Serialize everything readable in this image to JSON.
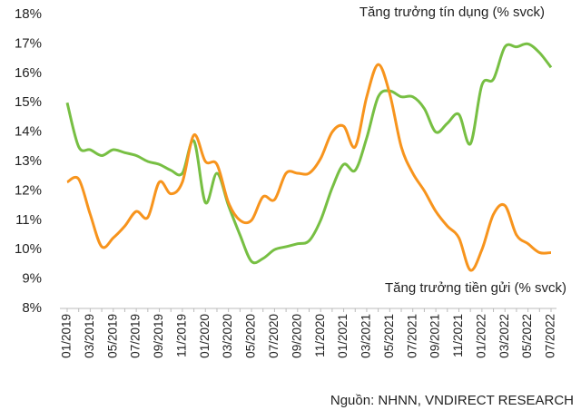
{
  "chart_data": {
    "type": "line",
    "categories": [
      "01/2019",
      null,
      "03/2019",
      null,
      "05/2019",
      null,
      "07/2019",
      null,
      "09/2019",
      null,
      "11/2019",
      null,
      "01/2020",
      null,
      "03/2020",
      null,
      "05/2020",
      null,
      "07/2020",
      null,
      "09/2020",
      null,
      "11/2020",
      null,
      "01/2021",
      null,
      "03/2021",
      null,
      "05/2021",
      null,
      "07/2021",
      null,
      "09/2021",
      null,
      "11/2021",
      null,
      "01/2022",
      null,
      "03/2022",
      null,
      "05/2022",
      null,
      "07/2022"
    ],
    "series": [
      {
        "name": "Tăng trưởng tín dụng (% svck)",
        "color": "#77bf43",
        "values": [
          15.0,
          13.5,
          13.4,
          13.2,
          13.4,
          13.3,
          13.2,
          13.0,
          12.9,
          12.7,
          12.6,
          13.7,
          11.6,
          12.6,
          11.5,
          10.5,
          9.6,
          9.7,
          10.0,
          10.1,
          10.2,
          10.3,
          11.0,
          12.1,
          12.9,
          12.7,
          13.8,
          15.2,
          15.4,
          15.2,
          15.2,
          14.8,
          14.0,
          14.3,
          14.6,
          13.6,
          15.6,
          15.8,
          16.9,
          16.9,
          17.0,
          16.7,
          16.2
        ]
      },
      {
        "name": "Tăng trưởng tiền gửi (% svck)",
        "color": "#f7941d",
        "values": [
          12.3,
          12.4,
          11.2,
          10.1,
          10.4,
          10.8,
          11.3,
          11.1,
          12.3,
          11.9,
          12.3,
          13.9,
          13.0,
          12.9,
          11.6,
          11.0,
          11.0,
          11.8,
          11.7,
          12.6,
          12.6,
          12.6,
          13.1,
          14.0,
          14.2,
          13.5,
          15.2,
          16.3,
          15.3,
          13.5,
          12.6,
          12.0,
          11.3,
          10.8,
          10.4,
          9.3,
          10.0,
          11.2,
          11.5,
          10.5,
          10.2,
          9.9,
          9.9
        ]
      }
    ],
    "ylim": [
      8,
      18
    ],
    "yticks": [
      {
        "value": 8,
        "label": "8%"
      },
      {
        "value": 9,
        "label": "9%"
      },
      {
        "value": 10,
        "label": "10%"
      },
      {
        "value": 11,
        "label": "11%"
      },
      {
        "value": 12,
        "label": "12%"
      },
      {
        "value": 13,
        "label": "13%"
      },
      {
        "value": 14,
        "label": "14%"
      },
      {
        "value": 15,
        "label": "15%"
      },
      {
        "value": 16,
        "label": "16%"
      },
      {
        "value": 17,
        "label": "17%"
      },
      {
        "value": 18,
        "label": "18%"
      }
    ],
    "source": "Nguồn: NHNN, VNDIRECT RESEARCH"
  }
}
